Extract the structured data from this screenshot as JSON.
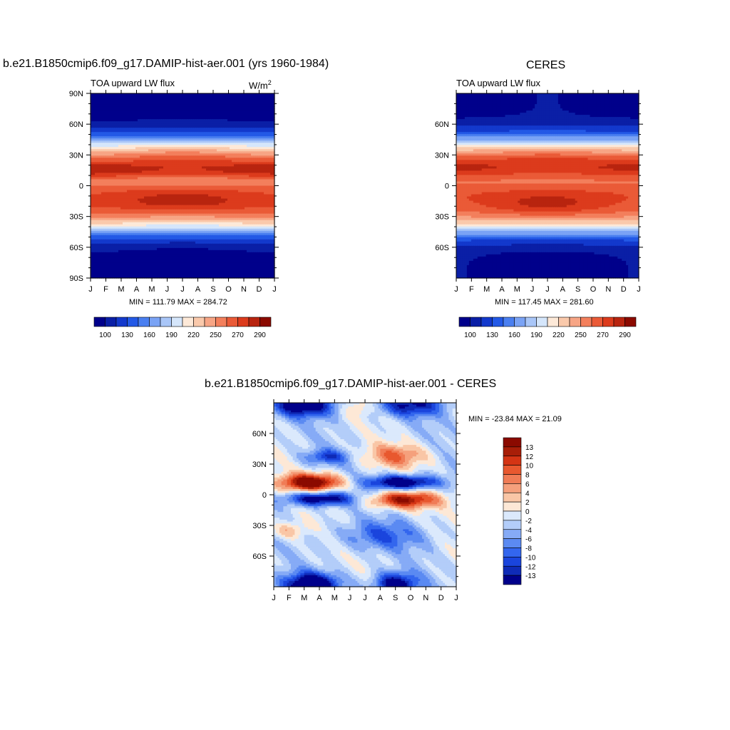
{
  "panels": {
    "model": {
      "title": "b.e21.B1850cmip6.f09_g17.DAMIP-hist-aer.001 (yrs 1960-1984)",
      "subtitle": "TOA upward LW flux",
      "units": "W/m",
      "units_sup": "2",
      "minmax": "MIN = 111.79 MAX = 284.72"
    },
    "obs": {
      "title": "CERES",
      "subtitle": "TOA upward LW flux",
      "minmax": "MIN = 117.45 MAX = 281.60"
    },
    "diff": {
      "title": "b.e21.B1850cmip6.f09_g17.DAMIP-hist-aer.001 - CERES",
      "minmax": "MIN = -23.84 MAX =  21.09"
    }
  },
  "colors": {
    "abs_levels": [
      "#00008b",
      "#0a1fa6",
      "#1339cc",
      "#2359e6",
      "#4a7ff0",
      "#7aa3f5",
      "#a9c6f8",
      "#d5e6fb",
      "#fde9d8",
      "#fac9ab",
      "#f7a585",
      "#f37f5c",
      "#ea5a37",
      "#dc3b1c",
      "#b8240f",
      "#8b0a00"
    ],
    "diff_levels": [
      "#00008b",
      "#0f2bb7",
      "#1a45dd",
      "#3366ee",
      "#5b8af2",
      "#86abf6",
      "#b3cdf9",
      "#dbe9fc",
      "#fde8d6",
      "#f9c6a6",
      "#f5a07c",
      "#f07c56",
      "#e8582f",
      "#d43414",
      "#a81e08",
      "#8b0a00"
    ]
  },
  "chart_data": [
    {
      "type": "heatmap",
      "name": "model",
      "x": [
        "J",
        "F",
        "M",
        "A",
        "M",
        "J",
        "J",
        "A",
        "S",
        "O",
        "N",
        "D",
        "J"
      ],
      "y_ticks": [
        "90N",
        "60N",
        "30N",
        "0",
        "30S",
        "60S",
        "90S"
      ],
      "colorbar_labels": [
        "100",
        "130",
        "160",
        "190",
        "220",
        "250",
        "270",
        "290"
      ],
      "colorbar_levels": [
        100,
        110,
        120,
        130,
        140,
        150,
        160,
        170,
        180,
        190,
        200,
        210,
        220,
        230,
        240,
        250,
        260,
        270,
        280,
        290
      ],
      "value_range": [
        111.79,
        284.72
      ]
    },
    {
      "type": "heatmap",
      "name": "obs",
      "x": [
        "J",
        "F",
        "M",
        "A",
        "M",
        "J",
        "J",
        "A",
        "S",
        "O",
        "N",
        "D",
        "J"
      ],
      "y_ticks": [
        "60N",
        "30N",
        "0",
        "30S",
        "60S"
      ],
      "colorbar_labels": [
        "100",
        "130",
        "160",
        "190",
        "220",
        "250",
        "270",
        "290"
      ],
      "value_range": [
        117.45,
        281.6
      ]
    },
    {
      "type": "heatmap",
      "name": "difference",
      "x": [
        "J",
        "F",
        "M",
        "A",
        "M",
        "J",
        "J",
        "A",
        "S",
        "O",
        "N",
        "D",
        "J"
      ],
      "y_ticks": [
        "60N",
        "30N",
        "0",
        "30S",
        "60S"
      ],
      "colorbar_labels": [
        "13",
        "12",
        "10",
        "8",
        "6",
        "4",
        "2",
        "0",
        "-2",
        "-4",
        "-6",
        "-8",
        "-10",
        "-12",
        "-13"
      ],
      "value_range": [
        -23.84,
        21.09
      ]
    }
  ]
}
